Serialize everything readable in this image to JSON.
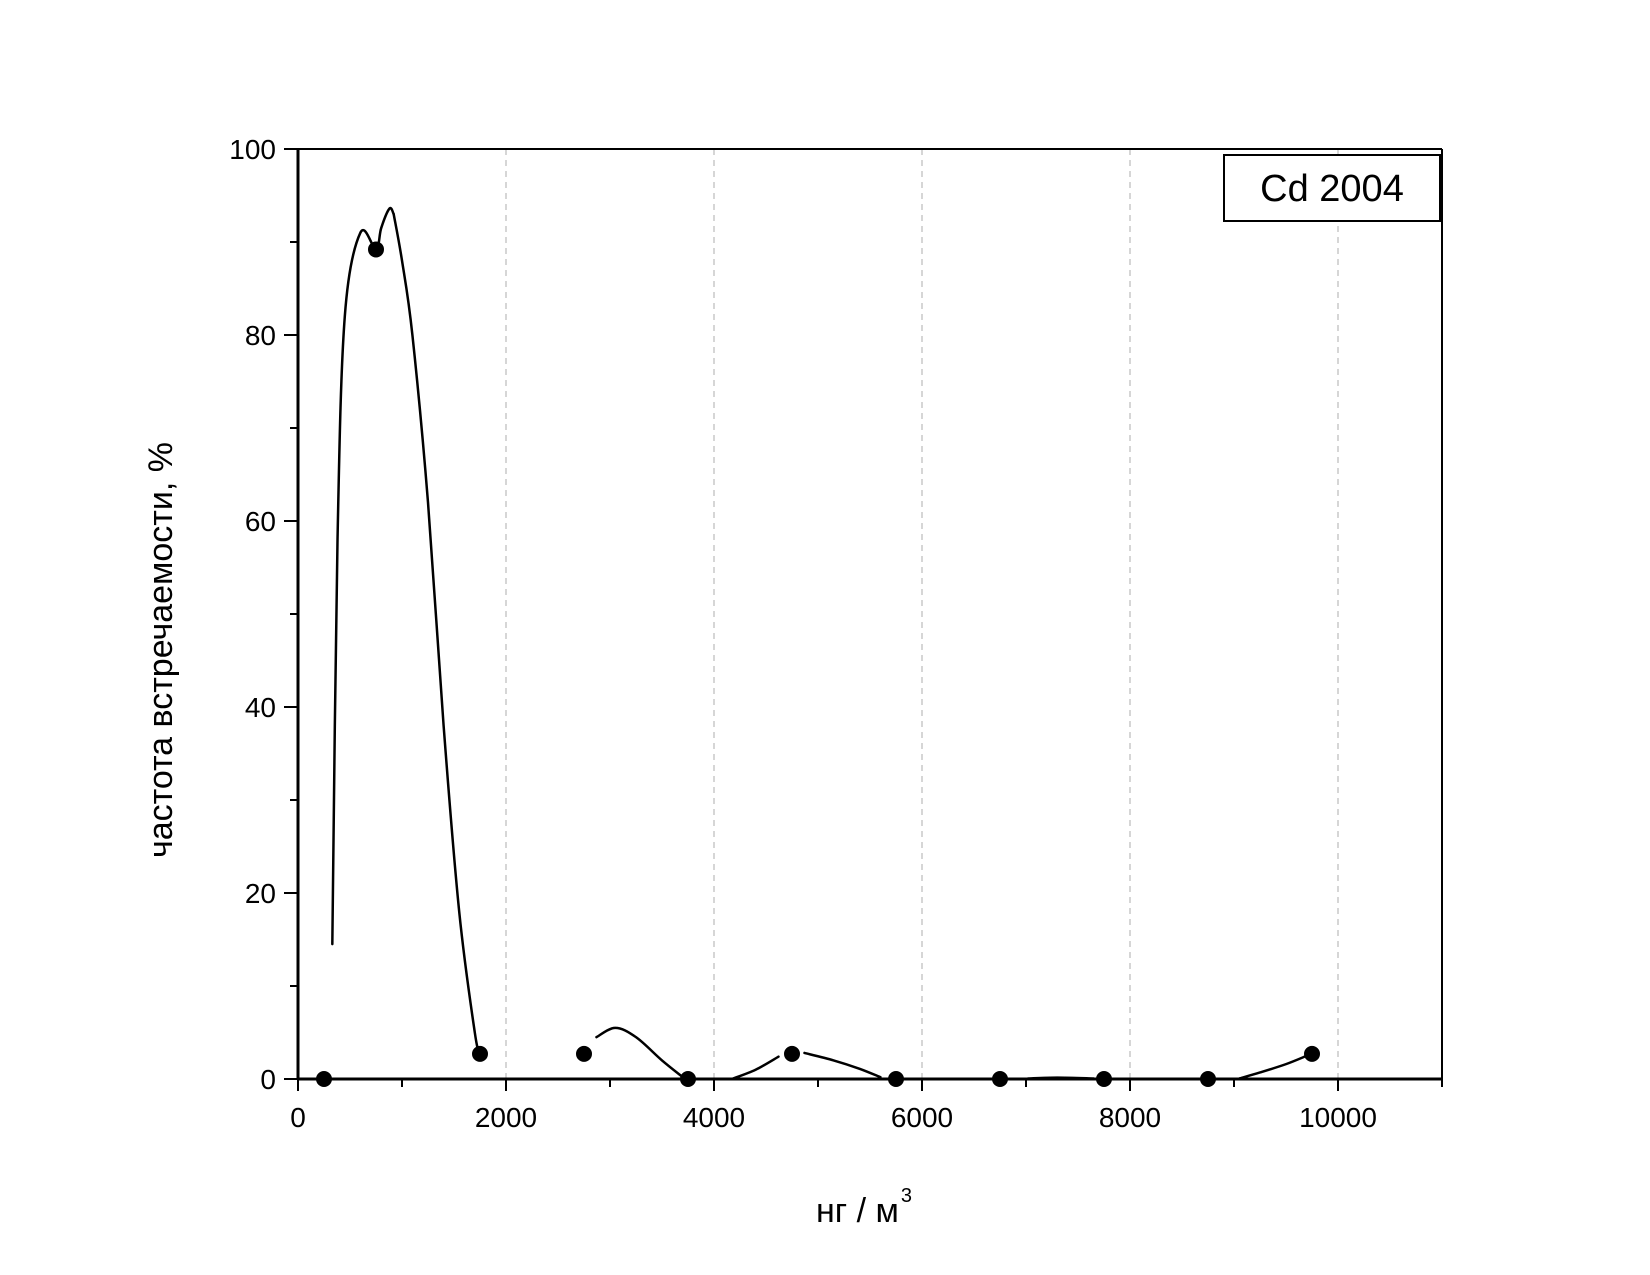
{
  "chart_data": {
    "type": "scatter",
    "xlabel": "нг / м",
    "xlabel_superscript": "3",
    "ylabel": "частота встречаемости, %",
    "xlim": [
      0,
      11000
    ],
    "ylim": [
      0,
      100
    ],
    "x_ticks": [
      0,
      2000,
      4000,
      6000,
      8000,
      10000
    ],
    "y_ticks": [
      0,
      20,
      40,
      60,
      80,
      100
    ],
    "x_tick_labels": [
      "0",
      "2000",
      "4000",
      "6000",
      "8000",
      "10000"
    ],
    "y_tick_labels": [
      "0",
      "20",
      "40",
      "60",
      "80",
      "100"
    ],
    "grid": "vertical dashed at major x ticks",
    "legend": {
      "text": "Cd 2004",
      "position": "top-right"
    },
    "series": [
      {
        "points": [
          [
            250,
            0
          ],
          [
            750,
            89.2
          ],
          [
            1750,
            2.7
          ],
          [
            2750,
            2.7
          ],
          [
            3750,
            0
          ],
          [
            4750,
            2.7
          ],
          [
            5750,
            0
          ],
          [
            6750,
            0
          ],
          [
            7750,
            0
          ],
          [
            8750,
            0
          ],
          [
            9750,
            2.7
          ]
        ],
        "marker": "filled-circle",
        "line": "smooth spline, drawn in broken segments"
      }
    ],
    "colors": {
      "marker": "#000000",
      "line": "#000000",
      "grid": "#c8c8c8"
    }
  }
}
